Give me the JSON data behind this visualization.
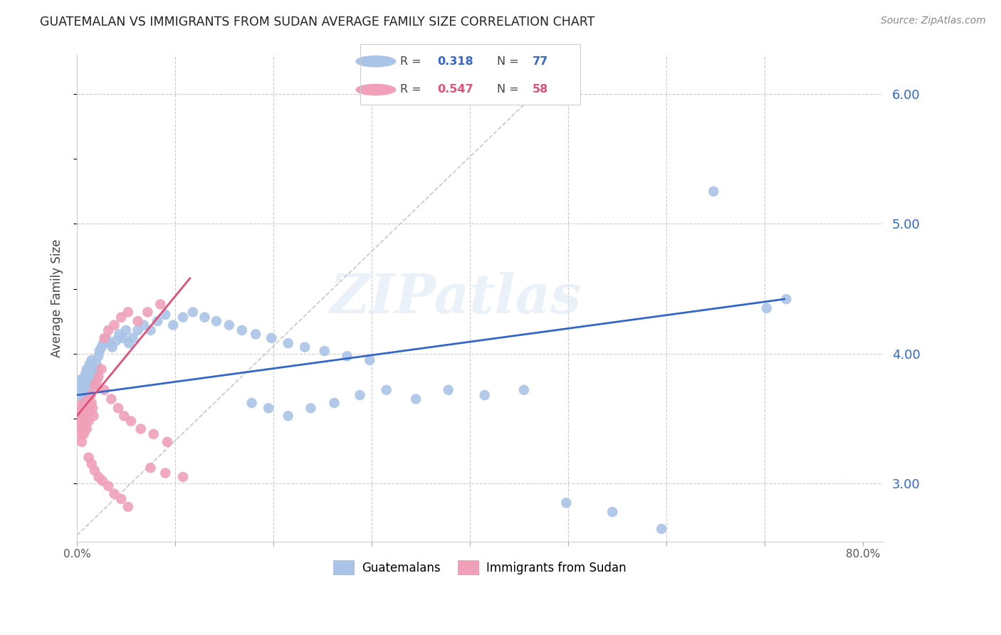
{
  "title": "GUATEMALAN VS IMMIGRANTS FROM SUDAN AVERAGE FAMILY SIZE CORRELATION CHART",
  "source": "Source: ZipAtlas.com",
  "ylabel": "Average Family Size",
  "yticks_right": [
    3.0,
    4.0,
    5.0,
    6.0
  ],
  "xlim": [
    0.0,
    0.82
  ],
  "ylim": [
    2.55,
    6.3
  ],
  "blue_color": "#aac4e8",
  "pink_color": "#f0a0b8",
  "blue_line_color": "#3366cc",
  "pink_line_color": "#e0507a",
  "blue_trend_x": [
    0.0,
    0.72
  ],
  "blue_trend_y": [
    3.68,
    4.42
  ],
  "pink_trend_x": [
    0.0,
    0.115
  ],
  "pink_trend_y": [
    3.52,
    4.58
  ],
  "dash_line_x": [
    0.0,
    0.48
  ],
  "dash_line_y": [
    2.6,
    6.1
  ],
  "blue_x": [
    0.003,
    0.004,
    0.005,
    0.006,
    0.007,
    0.007,
    0.008,
    0.008,
    0.009,
    0.009,
    0.01,
    0.01,
    0.011,
    0.011,
    0.012,
    0.012,
    0.013,
    0.013,
    0.014,
    0.014,
    0.015,
    0.015,
    0.016,
    0.017,
    0.018,
    0.019,
    0.02,
    0.021,
    0.022,
    0.023,
    0.025,
    0.027,
    0.03,
    0.033,
    0.036,
    0.04,
    0.043,
    0.047,
    0.05,
    0.053,
    0.057,
    0.062,
    0.068,
    0.075,
    0.082,
    0.09,
    0.098,
    0.108,
    0.118,
    0.13,
    0.142,
    0.155,
    0.168,
    0.182,
    0.198,
    0.215,
    0.232,
    0.252,
    0.275,
    0.298,
    0.178,
    0.195,
    0.215,
    0.238,
    0.262,
    0.288,
    0.315,
    0.345,
    0.378,
    0.415,
    0.455,
    0.498,
    0.545,
    0.595,
    0.648,
    0.702,
    0.722
  ],
  "blue_y": [
    3.72,
    3.8,
    3.75,
    3.65,
    3.7,
    3.78,
    3.68,
    3.82,
    3.75,
    3.85,
    3.7,
    3.88,
    3.75,
    3.8,
    3.72,
    3.85,
    3.78,
    3.92,
    3.82,
    3.88,
    3.75,
    3.95,
    3.88,
    3.82,
    3.78,
    3.85,
    3.92,
    3.88,
    3.98,
    4.02,
    4.05,
    4.08,
    4.12,
    4.08,
    4.05,
    4.1,
    4.15,
    4.12,
    4.18,
    4.08,
    4.12,
    4.18,
    4.22,
    4.18,
    4.25,
    4.3,
    4.22,
    4.28,
    4.32,
    4.28,
    4.25,
    4.22,
    4.18,
    4.15,
    4.12,
    4.08,
    4.05,
    4.02,
    3.98,
    3.95,
    3.62,
    3.58,
    3.52,
    3.58,
    3.62,
    3.68,
    3.72,
    3.65,
    3.72,
    3.68,
    3.72,
    2.85,
    2.78,
    2.65,
    5.25,
    4.35,
    4.42
  ],
  "pink_x": [
    0.002,
    0.003,
    0.003,
    0.004,
    0.004,
    0.005,
    0.005,
    0.006,
    0.006,
    0.007,
    0.007,
    0.008,
    0.008,
    0.009,
    0.009,
    0.01,
    0.01,
    0.011,
    0.011,
    0.012,
    0.012,
    0.013,
    0.014,
    0.015,
    0.016,
    0.017,
    0.018,
    0.02,
    0.022,
    0.025,
    0.028,
    0.032,
    0.038,
    0.045,
    0.052,
    0.062,
    0.075,
    0.09,
    0.108,
    0.028,
    0.035,
    0.042,
    0.048,
    0.055,
    0.065,
    0.078,
    0.092,
    0.072,
    0.085,
    0.012,
    0.015,
    0.018,
    0.022,
    0.026,
    0.032,
    0.038,
    0.045,
    0.052
  ],
  "pink_y": [
    3.52,
    3.45,
    3.6,
    3.38,
    3.55,
    3.32,
    3.48,
    3.42,
    3.58,
    3.38,
    3.52,
    3.48,
    3.62,
    3.45,
    3.58,
    3.42,
    3.55,
    3.52,
    3.65,
    3.48,
    3.6,
    3.55,
    3.68,
    3.62,
    3.58,
    3.52,
    3.75,
    3.78,
    3.82,
    3.88,
    4.12,
    4.18,
    4.22,
    4.28,
    4.32,
    4.25,
    3.12,
    3.08,
    3.05,
    3.72,
    3.65,
    3.58,
    3.52,
    3.48,
    3.42,
    3.38,
    3.32,
    4.32,
    4.38,
    3.2,
    3.15,
    3.1,
    3.05,
    3.02,
    2.98,
    2.92,
    2.88,
    2.82
  ]
}
